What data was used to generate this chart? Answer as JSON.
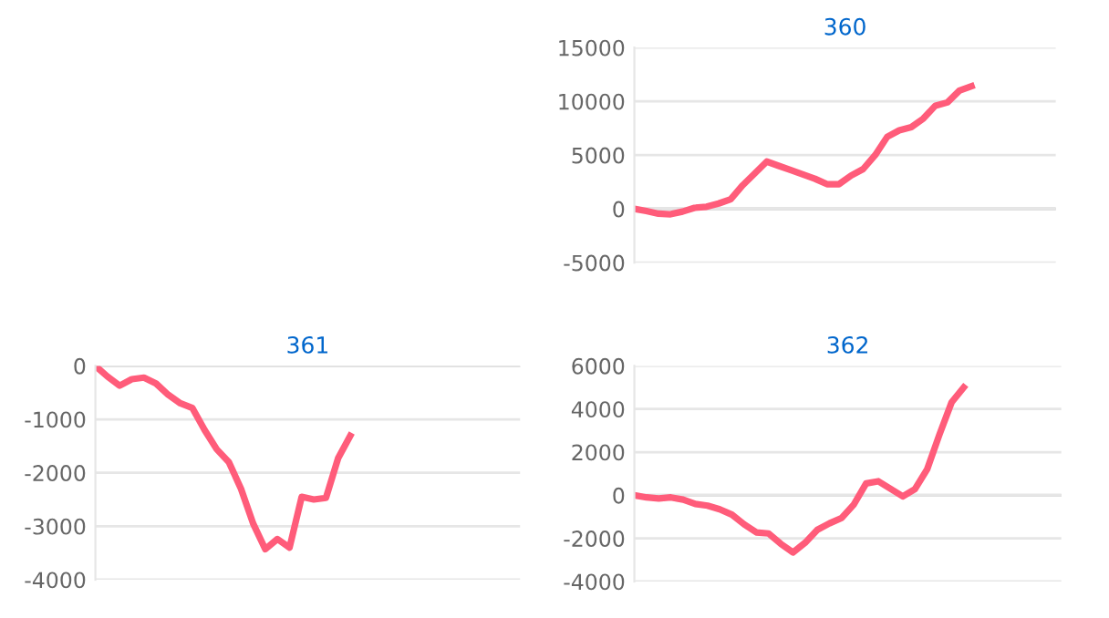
{
  "chart_data": [
    {
      "type": "line",
      "title": "360",
      "categories": [
        null,
        null,
        null,
        null,
        null,
        null,
        null,
        null,
        null,
        null,
        null,
        null,
        null,
        null,
        null,
        null,
        null,
        null,
        null,
        null,
        null,
        null,
        null,
        null,
        null,
        null,
        null,
        null,
        null,
        null,
        null,
        null,
        null,
        null,
        null,
        null
      ],
      "series": [
        {
          "color": "#ff5c7a",
          "values": [
            0,
            -200,
            -450,
            -500,
            -250,
            100,
            200,
            500,
            900,
            2200,
            3300,
            4400,
            4000,
            3600,
            3200,
            2800,
            2300,
            2300,
            3100,
            3700,
            5000,
            6700,
            7300,
            7600,
            8400,
            9600,
            9900,
            11000,
            11400,
            null,
            null,
            null,
            null,
            null,
            null,
            null
          ]
        }
      ],
      "ylim": [
        -5000,
        15000
      ],
      "yticks": [
        -5000,
        0,
        5000,
        10000,
        15000
      ],
      "grid": "y",
      "tick_labels": "y",
      "marker": "none",
      "line_style": "solid"
    },
    {
      "type": "line",
      "title": "361",
      "categories": [
        null,
        null,
        null,
        null,
        null,
        null,
        null,
        null,
        null,
        null,
        null,
        null,
        null,
        null,
        null,
        null,
        null,
        null,
        null,
        null,
        null,
        null,
        null,
        null,
        null,
        null,
        null,
        null,
        null,
        null,
        null,
        null,
        null,
        null,
        null,
        null
      ],
      "series": [
        {
          "color": "#ff5c7a",
          "values": [
            0,
            -200,
            -370,
            -250,
            -220,
            -330,
            -540,
            -700,
            -790,
            -1200,
            -1560,
            -1800,
            -2300,
            -2950,
            -3430,
            -3240,
            -3400,
            -2450,
            -2500,
            -2470,
            -1730,
            -1310,
            null,
            null,
            null,
            null,
            null,
            null,
            null,
            null,
            null,
            null,
            null,
            null,
            null,
            null
          ]
        }
      ],
      "ylim": [
        -4000,
        0
      ],
      "yticks": [
        -4000,
        -3000,
        -2000,
        -1000,
        0
      ],
      "grid": "y",
      "tick_labels": "y",
      "marker": "none",
      "line_style": "solid"
    },
    {
      "type": "line",
      "title": "362",
      "categories": [
        null,
        null,
        null,
        null,
        null,
        null,
        null,
        null,
        null,
        null,
        null,
        null,
        null,
        null,
        null,
        null,
        null,
        null,
        null,
        null,
        null,
        null,
        null,
        null,
        null,
        null,
        null,
        null,
        null,
        null,
        null,
        null,
        null,
        null,
        null,
        null
      ],
      "series": [
        {
          "color": "#ff5c7a",
          "values": [
            0,
            -100,
            -150,
            -100,
            -200,
            -400,
            -480,
            -650,
            -900,
            -1350,
            -1720,
            -1770,
            -2250,
            -2650,
            -2200,
            -1600,
            -1300,
            -1050,
            -420,
            550,
            650,
            300,
            -50,
            280,
            1200,
            2800,
            4300,
            5000,
            null,
            null,
            null,
            null,
            null,
            null,
            null,
            null
          ]
        }
      ],
      "ylim": [
        -4000,
        6000
      ],
      "yticks": [
        -4000,
        -2000,
        0,
        2000,
        4000,
        6000
      ],
      "grid": "y",
      "tick_labels": "y",
      "marker": "none",
      "line_style": "solid"
    }
  ]
}
